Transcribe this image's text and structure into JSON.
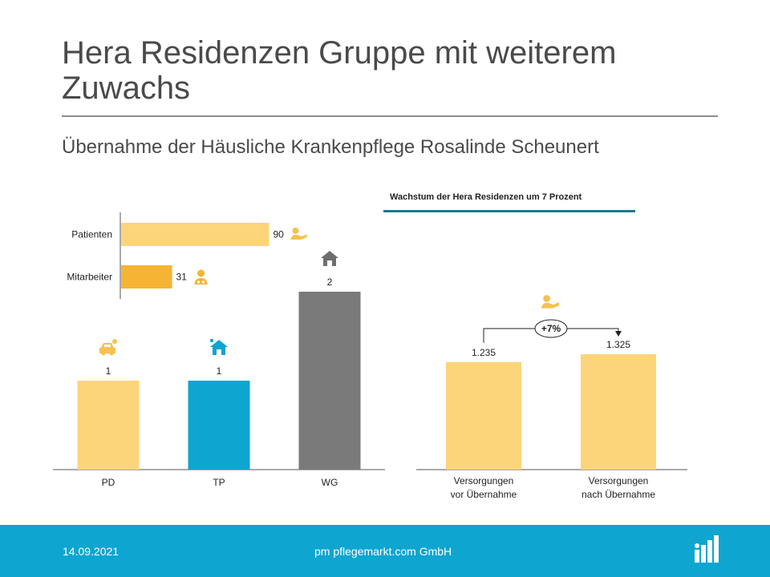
{
  "slide": {
    "title": "Hera Residenzen Gruppe mit weiterem Zuwachs",
    "subtitle": "Übernahme der Häusliche Krankenpflege Rosalinde Scheunert",
    "right_chart_title": "Wachstum der Hera Residenzen um 7 Prozent"
  },
  "footer": {
    "date": "14.09.2021",
    "company": "pm pflegemarkt.com GmbH"
  },
  "colors": {
    "light_yellow": "#fcd57a",
    "orange_yellow": "#f5b434",
    "blue": "#0ea5d0",
    "gray": "#7a7a7a",
    "teal_rule": "#1b7a8c",
    "footer_bg": "#0ea5d0"
  },
  "chart_data": [
    {
      "type": "bar",
      "orientation": "horizontal",
      "categories": [
        "Patienten",
        "Mitarbeiter"
      ],
      "values": [
        90,
        31
      ],
      "value_labels": [
        "90",
        "31"
      ],
      "icons": [
        "patient-icon",
        "doctor-icon"
      ],
      "colors": [
        "#fcd57a",
        "#f5b434"
      ],
      "xlim": [
        0,
        100
      ]
    },
    {
      "type": "bar",
      "categories": [
        "PD",
        "TP",
        "WG"
      ],
      "values": [
        1,
        1,
        2
      ],
      "value_labels": [
        "1",
        "1",
        "2"
      ],
      "icons": [
        "car-icon",
        "home-care-icon",
        "home-icon"
      ],
      "colors": [
        "#fcd57a",
        "#0ea5d0",
        "#7a7a7a"
      ],
      "ylim": [
        0,
        2
      ]
    },
    {
      "type": "bar",
      "title": "Wachstum der Hera Residenzen um 7 Prozent",
      "categories": [
        "Versorgungen vor Übernahme",
        "Versorgungen nach Übernahme"
      ],
      "category_lines": [
        [
          "Versorgungen",
          "vor Übernahme"
        ],
        [
          "Versorgungen",
          "nach Übernahme"
        ]
      ],
      "values": [
        1235,
        1325
      ],
      "value_labels": [
        "1.235",
        "1.325"
      ],
      "annotation": "+7%",
      "icon": "patient-icon",
      "colors": [
        "#fcd57a",
        "#fcd57a"
      ],
      "ylim": [
        0,
        1500
      ]
    }
  ]
}
